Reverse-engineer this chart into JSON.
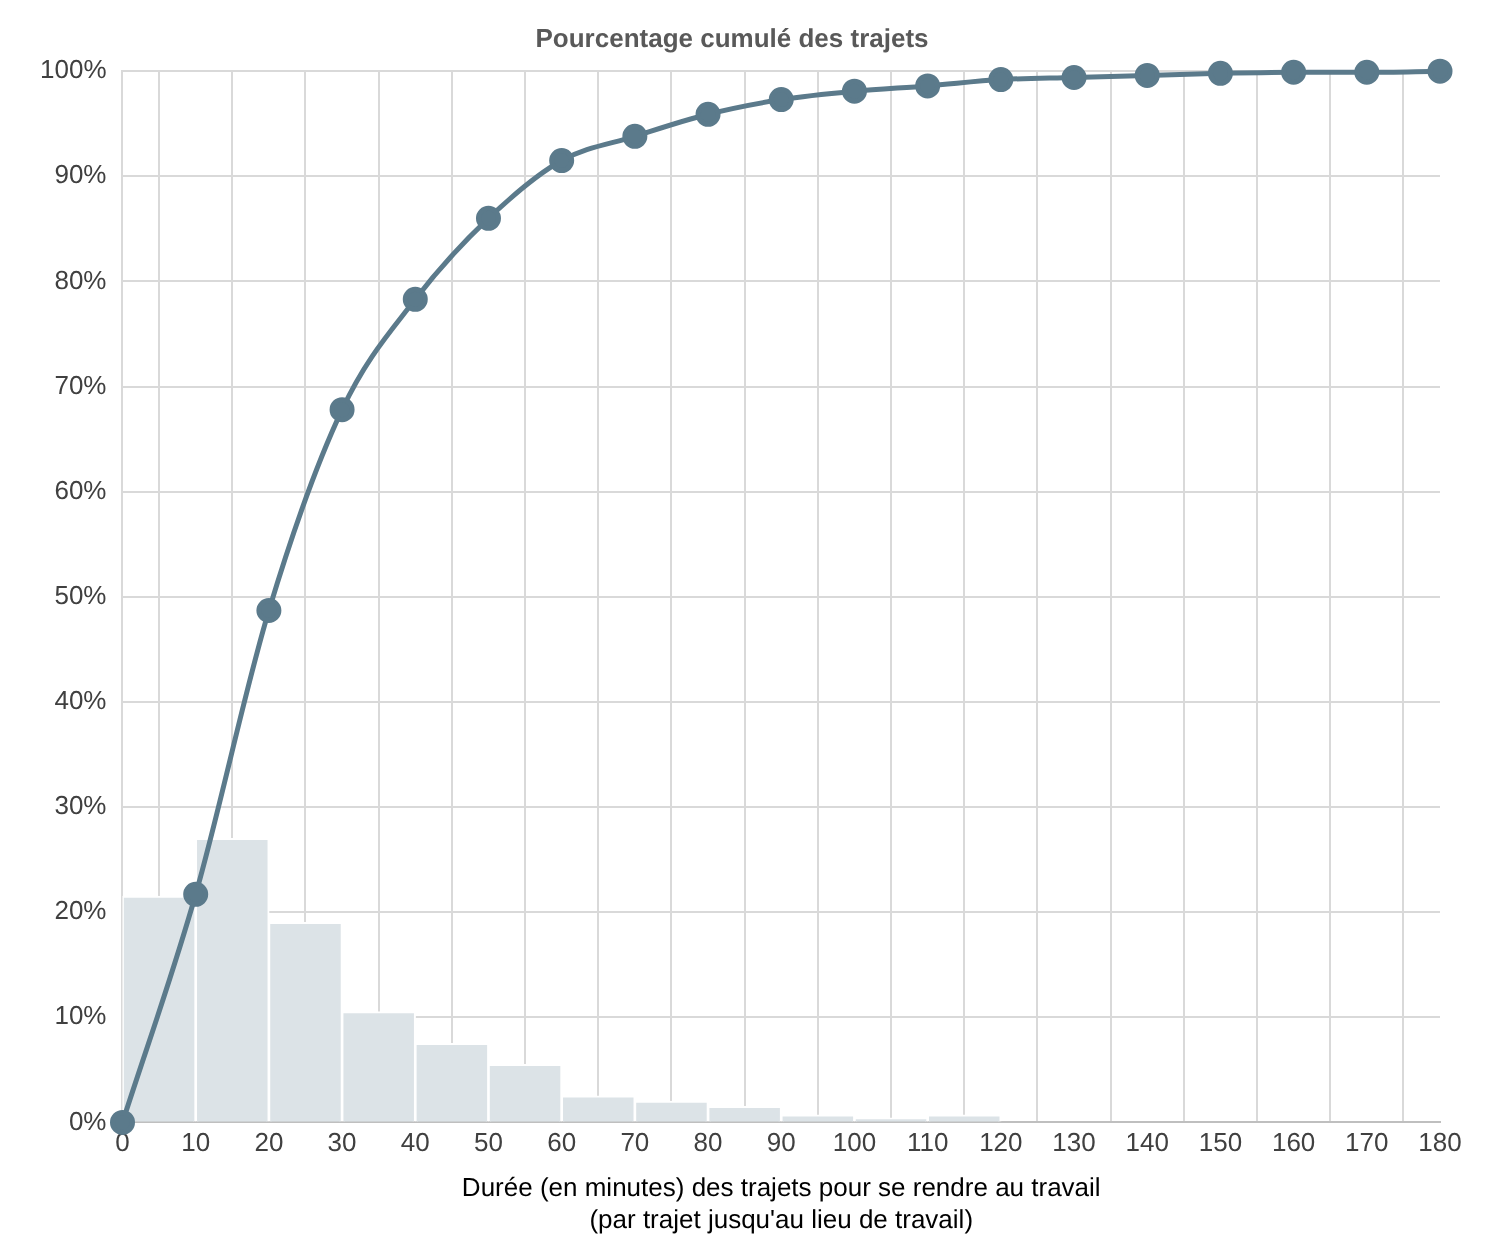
{
  "chart_data": {
    "type": "histogram",
    "title": "Pourcentage cumulé des trajets",
    "xlabel": "Durée (en minutes) des trajets pour se rendre au travail\n(par trajet jusqu'au lieu de travail)",
    "series": [
      {
        "color": "#dce3e7",
        "bins": [
          0,
          10,
          20,
          30,
          40,
          50,
          60,
          70,
          80,
          90,
          100,
          110,
          120
        ],
        "values": [
          21.5,
          27,
          19,
          10.5,
          7.5,
          5.5,
          2.5,
          2,
          1.5,
          0.7,
          0.4,
          0.7
        ]
      },
      {
        "type": "line",
        "color": "#5b7a8b",
        "x": [
          0,
          10,
          20,
          30,
          40,
          50,
          60,
          70,
          80,
          90,
          100,
          110,
          120,
          130,
          140,
          150,
          160,
          170,
          180
        ],
        "values": [
          0,
          21.7,
          48.7,
          67.8,
          78.3,
          86,
          91.5,
          93.8,
          95.9,
          97.3,
          98.1,
          98.6,
          99.2,
          99.4,
          99.6,
          99.8,
          99.9,
          99.9,
          100
        ]
      }
    ],
    "marker": "circle",
    "grid": true,
    "legend": false,
    "xlim": [
      0,
      180
    ],
    "xticks": [
      0,
      10,
      20,
      30,
      40,
      50,
      60,
      70,
      80,
      90,
      100,
      110,
      120,
      130,
      140,
      150,
      160,
      170,
      180
    ],
    "ylim": [
      0,
      100
    ],
    "yticks": [
      {
        "value": 0,
        "label": "0%"
      },
      {
        "value": 10,
        "label": "10%"
      },
      {
        "value": 20,
        "label": "20%"
      },
      {
        "value": 30,
        "label": "30%"
      },
      {
        "value": 40,
        "label": "40%"
      },
      {
        "value": 50,
        "label": "50%"
      },
      {
        "value": 60,
        "label": "60%"
      },
      {
        "value": 70,
        "label": "70%"
      },
      {
        "value": 80,
        "label": "80%"
      },
      {
        "value": 90,
        "label": "90%"
      },
      {
        "value": 100,
        "label": "100%"
      }
    ]
  }
}
